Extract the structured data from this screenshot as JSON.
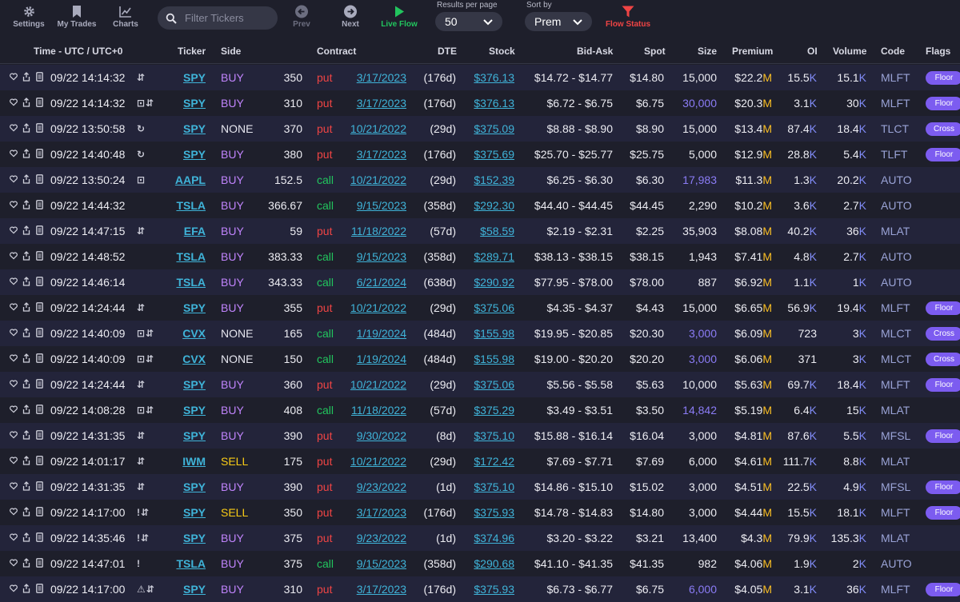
{
  "toolbar": {
    "settings_label": "Settings",
    "mytrades_label": "My Trades",
    "charts_label": "Charts",
    "search_placeholder": "Filter Tickers",
    "prev_label": "Prev",
    "next_label": "Next",
    "liveflow_label": "Live Flow",
    "results_caption": "Results per page",
    "results_value": "50",
    "sort_caption": "Sort by",
    "sort_value": "Prem",
    "flowstatus_label": "Flow Status"
  },
  "columns": {
    "time": "Time - UTC / UTC+0",
    "ticker": "Ticker",
    "side": "Side",
    "contract": "Contract",
    "dte": "DTE",
    "stock": "Stock",
    "bidask": "Bid-Ask",
    "spot": "Spot",
    "size": "Size",
    "premium": "Premium",
    "oi": "OI",
    "volume": "Volume",
    "code": "Code",
    "flags": "Flags"
  },
  "rows": [
    {
      "time": "09/22 14:14:32",
      "sym": "⇵",
      "ticker": "SPY",
      "side": "BUY",
      "strike": "350",
      "type": "put",
      "exp": "3/17/2023",
      "dte": "(176d)",
      "stock": "$376.13",
      "bidask": "$14.72 - $14.77",
      "spot": "$14.80",
      "size": "15,000",
      "size_hi": false,
      "prem": "$22.2",
      "prem_u": "M",
      "oi": "15.5",
      "oi_u": "K",
      "vol": "15.1",
      "vol_u": "K",
      "code": "MLFT",
      "flag": "Floor"
    },
    {
      "time": "09/22 14:14:32",
      "sym": "⊡⇵",
      "ticker": "SPY",
      "side": "BUY",
      "strike": "310",
      "type": "put",
      "exp": "3/17/2023",
      "dte": "(176d)",
      "stock": "$376.13",
      "bidask": "$6.72 - $6.75",
      "spot": "$6.75",
      "size": "30,000",
      "size_hi": true,
      "prem": "$20.3",
      "prem_u": "M",
      "oi": "3.1",
      "oi_u": "K",
      "vol": "30",
      "vol_u": "K",
      "code": "MLFT",
      "flag": "Floor"
    },
    {
      "time": "09/22 13:50:58",
      "sym": "↻",
      "ticker": "SPY",
      "side": "NONE",
      "strike": "370",
      "type": "put",
      "exp": "10/21/2022",
      "dte": "(29d)",
      "stock": "$375.09",
      "bidask": "$8.88 - $8.90",
      "spot": "$8.90",
      "size": "15,000",
      "size_hi": false,
      "prem": "$13.4",
      "prem_u": "M",
      "oi": "87.4",
      "oi_u": "K",
      "vol": "18.4",
      "vol_u": "K",
      "code": "TLCT",
      "flag": "Cross"
    },
    {
      "time": "09/22 14:40:48",
      "sym": "↻",
      "ticker": "SPY",
      "side": "BUY",
      "strike": "380",
      "type": "put",
      "exp": "3/17/2023",
      "dte": "(176d)",
      "stock": "$375.69",
      "bidask": "$25.70 - $25.77",
      "spot": "$25.75",
      "size": "5,000",
      "size_hi": false,
      "prem": "$12.9",
      "prem_u": "M",
      "oi": "28.8",
      "oi_u": "K",
      "vol": "5.4",
      "vol_u": "K",
      "code": "TLFT",
      "flag": "Floor"
    },
    {
      "time": "09/22 13:50:24",
      "sym": "⊡",
      "ticker": "AAPL",
      "side": "BUY",
      "strike": "152.5",
      "type": "call",
      "exp": "10/21/2022",
      "dte": "(29d)",
      "stock": "$152.39",
      "bidask": "$6.25 - $6.30",
      "spot": "$6.30",
      "size": "17,983",
      "size_hi": true,
      "prem": "$11.3",
      "prem_u": "M",
      "oi": "1.3",
      "oi_u": "K",
      "vol": "20.2",
      "vol_u": "K",
      "code": "AUTO",
      "flag": ""
    },
    {
      "time": "09/22 14:44:32",
      "sym": "",
      "ticker": "TSLA",
      "side": "BUY",
      "strike": "366.67",
      "type": "call",
      "exp": "9/15/2023",
      "dte": "(358d)",
      "stock": "$292.30",
      "bidask": "$44.40 - $44.45",
      "spot": "$44.45",
      "size": "2,290",
      "size_hi": false,
      "prem": "$10.2",
      "prem_u": "M",
      "oi": "3.6",
      "oi_u": "K",
      "vol": "2.7",
      "vol_u": "K",
      "code": "AUTO",
      "flag": ""
    },
    {
      "time": "09/22 14:47:15",
      "sym": "⇵",
      "ticker": "EFA",
      "side": "BUY",
      "strike": "59",
      "type": "put",
      "exp": "11/18/2022",
      "dte": "(57d)",
      "stock": "$58.59",
      "bidask": "$2.19 - $2.31",
      "spot": "$2.25",
      "size": "35,903",
      "size_hi": false,
      "prem": "$8.08",
      "prem_u": "M",
      "oi": "40.2",
      "oi_u": "K",
      "vol": "36",
      "vol_u": "K",
      "code": "MLAT",
      "flag": ""
    },
    {
      "time": "09/22 14:48:52",
      "sym": "",
      "ticker": "TSLA",
      "side": "BUY",
      "strike": "383.33",
      "type": "call",
      "exp": "9/15/2023",
      "dte": "(358d)",
      "stock": "$289.71",
      "bidask": "$38.13 - $38.15",
      "spot": "$38.15",
      "size": "1,943",
      "size_hi": false,
      "prem": "$7.41",
      "prem_u": "M",
      "oi": "4.8",
      "oi_u": "K",
      "vol": "2.7",
      "vol_u": "K",
      "code": "AUTO",
      "flag": ""
    },
    {
      "time": "09/22 14:46:14",
      "sym": "",
      "ticker": "TSLA",
      "side": "BUY",
      "strike": "343.33",
      "type": "call",
      "exp": "6/21/2024",
      "dte": "(638d)",
      "stock": "$290.92",
      "bidask": "$77.95 - $78.00",
      "spot": "$78.00",
      "size": "887",
      "size_hi": false,
      "prem": "$6.92",
      "prem_u": "M",
      "oi": "1.1",
      "oi_u": "K",
      "vol": "1",
      "vol_u": "K",
      "code": "AUTO",
      "flag": ""
    },
    {
      "time": "09/22 14:24:44",
      "sym": "⇵",
      "ticker": "SPY",
      "side": "BUY",
      "strike": "355",
      "type": "put",
      "exp": "10/21/2022",
      "dte": "(29d)",
      "stock": "$375.06",
      "bidask": "$4.35 - $4.37",
      "spot": "$4.43",
      "size": "15,000",
      "size_hi": false,
      "prem": "$6.65",
      "prem_u": "M",
      "oi": "56.9",
      "oi_u": "K",
      "vol": "19.4",
      "vol_u": "K",
      "code": "MLFT",
      "flag": "Floor"
    },
    {
      "time": "09/22 14:40:09",
      "sym": "⊡⇵",
      "ticker": "CVX",
      "side": "NONE",
      "strike": "165",
      "type": "call",
      "exp": "1/19/2024",
      "dte": "(484d)",
      "stock": "$155.98",
      "bidask": "$19.95 - $20.85",
      "spot": "$20.30",
      "size": "3,000",
      "size_hi": true,
      "prem": "$6.09",
      "prem_u": "M",
      "oi": "723",
      "oi_u": "",
      "vol": "3",
      "vol_u": "K",
      "code": "MLCT",
      "flag": "Cross"
    },
    {
      "time": "09/22 14:40:09",
      "sym": "⊡⇵",
      "ticker": "CVX",
      "side": "NONE",
      "strike": "150",
      "type": "call",
      "exp": "1/19/2024",
      "dte": "(484d)",
      "stock": "$155.98",
      "bidask": "$19.00 - $20.20",
      "spot": "$20.20",
      "size": "3,000",
      "size_hi": true,
      "prem": "$6.06",
      "prem_u": "M",
      "oi": "371",
      "oi_u": "",
      "vol": "3",
      "vol_u": "K",
      "code": "MLCT",
      "flag": "Cross"
    },
    {
      "time": "09/22 14:24:44",
      "sym": "⇵",
      "ticker": "SPY",
      "side": "BUY",
      "strike": "360",
      "type": "put",
      "exp": "10/21/2022",
      "dte": "(29d)",
      "stock": "$375.06",
      "bidask": "$5.56 - $5.58",
      "spot": "$5.63",
      "size": "10,000",
      "size_hi": false,
      "prem": "$5.63",
      "prem_u": "M",
      "oi": "69.7",
      "oi_u": "K",
      "vol": "18.4",
      "vol_u": "K",
      "code": "MLFT",
      "flag": "Floor"
    },
    {
      "time": "09/22 14:08:28",
      "sym": "⊡⇵",
      "ticker": "SPY",
      "side": "BUY",
      "strike": "408",
      "type": "call",
      "exp": "11/18/2022",
      "dte": "(57d)",
      "stock": "$375.29",
      "bidask": "$3.49 - $3.51",
      "spot": "$3.50",
      "size": "14,842",
      "size_hi": true,
      "prem": "$5.19",
      "prem_u": "M",
      "oi": "6.4",
      "oi_u": "K",
      "vol": "15",
      "vol_u": "K",
      "code": "MLAT",
      "flag": ""
    },
    {
      "time": "09/22 14:31:35",
      "sym": "⇵",
      "ticker": "SPY",
      "side": "BUY",
      "strike": "390",
      "type": "put",
      "exp": "9/30/2022",
      "dte": "(8d)",
      "stock": "$375.10",
      "bidask": "$15.88 - $16.14",
      "spot": "$16.04",
      "size": "3,000",
      "size_hi": false,
      "prem": "$4.81",
      "prem_u": "M",
      "oi": "87.6",
      "oi_u": "K",
      "vol": "5.5",
      "vol_u": "K",
      "code": "MFSL",
      "flag": "Floor"
    },
    {
      "time": "09/22 14:01:17",
      "sym": "⇵",
      "ticker": "IWM",
      "side": "SELL",
      "strike": "175",
      "type": "put",
      "exp": "10/21/2022",
      "dte": "(29d)",
      "stock": "$172.42",
      "bidask": "$7.69 - $7.71",
      "spot": "$7.69",
      "size": "6,000",
      "size_hi": false,
      "prem": "$4.61",
      "prem_u": "M",
      "oi": "111.7",
      "oi_u": "K",
      "vol": "8.8",
      "vol_u": "K",
      "code": "MLAT",
      "flag": ""
    },
    {
      "time": "09/22 14:31:35",
      "sym": "⇵",
      "ticker": "SPY",
      "side": "BUY",
      "strike": "390",
      "type": "put",
      "exp": "9/23/2022",
      "dte": "(1d)",
      "stock": "$375.10",
      "bidask": "$14.86 - $15.10",
      "spot": "$15.02",
      "size": "3,000",
      "size_hi": false,
      "prem": "$4.51",
      "prem_u": "M",
      "oi": "22.5",
      "oi_u": "K",
      "vol": "4.9",
      "vol_u": "K",
      "code": "MFSL",
      "flag": "Floor"
    },
    {
      "time": "09/22 14:17:00",
      "sym": "!⇵",
      "ticker": "SPY",
      "side": "SELL",
      "strike": "350",
      "type": "put",
      "exp": "3/17/2023",
      "dte": "(176d)",
      "stock": "$375.93",
      "bidask": "$14.78 - $14.83",
      "spot": "$14.80",
      "size": "3,000",
      "size_hi": false,
      "prem": "$4.44",
      "prem_u": "M",
      "oi": "15.5",
      "oi_u": "K",
      "vol": "18.1",
      "vol_u": "K",
      "code": "MLFT",
      "flag": "Floor"
    },
    {
      "time": "09/22 14:35:46",
      "sym": "!⇵",
      "ticker": "SPY",
      "side": "BUY",
      "strike": "375",
      "type": "put",
      "exp": "9/23/2022",
      "dte": "(1d)",
      "stock": "$374.96",
      "bidask": "$3.20 - $3.22",
      "spot": "$3.21",
      "size": "13,400",
      "size_hi": false,
      "prem": "$4.3",
      "prem_u": "M",
      "oi": "79.9",
      "oi_u": "K",
      "vol": "135.3",
      "vol_u": "K",
      "code": "MLAT",
      "flag": ""
    },
    {
      "time": "09/22 14:47:01",
      "sym": "!",
      "ticker": "TSLA",
      "side": "BUY",
      "strike": "375",
      "type": "call",
      "exp": "9/15/2023",
      "dte": "(358d)",
      "stock": "$290.68",
      "bidask": "$41.10 - $41.35",
      "spot": "$41.35",
      "size": "982",
      "size_hi": false,
      "prem": "$4.06",
      "prem_u": "M",
      "oi": "1.9",
      "oi_u": "K",
      "vol": "2",
      "vol_u": "K",
      "code": "AUTO",
      "flag": ""
    },
    {
      "time": "09/22 14:17:00",
      "sym": "⚠⇵",
      "ticker": "SPY",
      "side": "BUY",
      "strike": "310",
      "type": "put",
      "exp": "3/17/2023",
      "dte": "(176d)",
      "stock": "$375.93",
      "bidask": "$6.73 - $6.77",
      "spot": "$6.75",
      "size": "6,000",
      "size_hi": true,
      "prem": "$4.05",
      "prem_u": "M",
      "oi": "3.1",
      "oi_u": "K",
      "vol": "36",
      "vol_u": "K",
      "code": "MLFT",
      "flag": "Floor"
    }
  ]
}
